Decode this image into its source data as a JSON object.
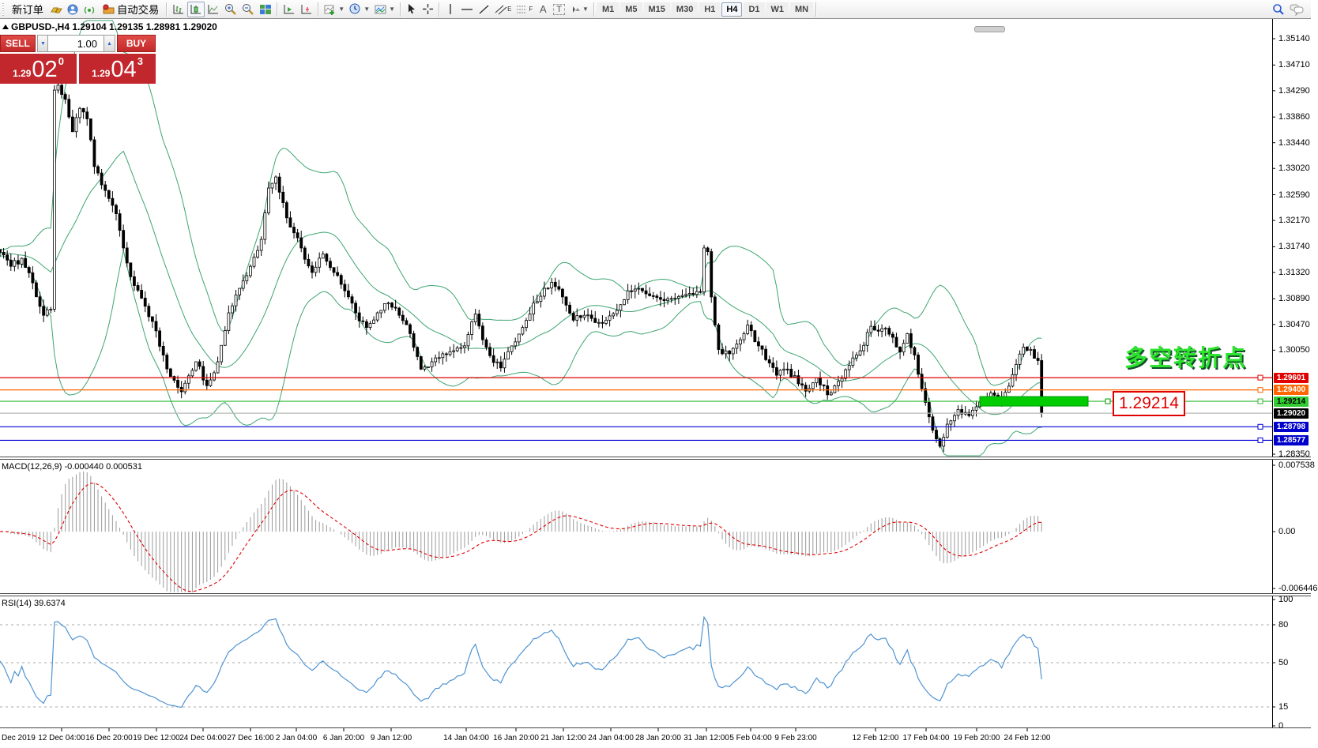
{
  "toolbar": {
    "new_order_label": "新订单",
    "auto_trading_label": "自动交易",
    "timeframes": [
      "M1",
      "M5",
      "M15",
      "M30",
      "H1",
      "H4",
      "D1",
      "W1",
      "MN"
    ],
    "active_timeframe": "H4",
    "text_tool_label": "A",
    "channel_tool_label": "E",
    "fibo_tool_label": "F",
    "label_tool_label": "T"
  },
  "chart": {
    "title": "GBPUSD-,H4 1.29104 1.29135 1.28981 1.29020",
    "symbol": "GBPUSD-",
    "timeframe": "H4"
  },
  "trade_panel": {
    "sell_label": "SELL",
    "buy_label": "BUY",
    "volume": "1.00",
    "sell_price_prefix": "1.29",
    "sell_price_big": "02",
    "sell_price_sup": "0",
    "buy_price_prefix": "1.29",
    "buy_price_big": "04",
    "buy_price_sup": "3"
  },
  "indicator_labels": {
    "macd": "MACD(12,26,9) -0.000440 0.000531",
    "rsi": "RSI(14) 39.6374"
  },
  "annotations": {
    "turning_point": "多空转折点",
    "price_tag": "1.29214"
  },
  "price_axis": {
    "ticks": [
      "1.35140",
      "1.34710",
      "1.34290",
      "1.33860",
      "1.33440",
      "1.33020",
      "1.32590",
      "1.32170",
      "1.31740",
      "1.31320",
      "1.30890",
      "1.30470",
      "1.30050",
      "1.28350"
    ]
  },
  "levels": [
    {
      "price": 1.29601,
      "color": "#e00000",
      "label": "1.29601",
      "badge_bg": "#e00000",
      "badge_fg": "#ffffff"
    },
    {
      "price": 1.294,
      "color": "#ff6600",
      "label": "1.29400",
      "badge_bg": "#ff6600",
      "badge_fg": "#ffffff"
    },
    {
      "price": 1.29214,
      "color": "#2eb82e",
      "label": "1.29214",
      "badge_bg": "#33cc33",
      "badge_fg": "#000000"
    },
    {
      "price": 1.2902,
      "color": "#b8b8b8",
      "label": "1.29020",
      "badge_bg": "#000000",
      "badge_fg": "#ffffff",
      "no_marker": true
    },
    {
      "price": 1.28798,
      "color": "#0000d6",
      "label": "1.28798",
      "badge_bg": "#0000cc",
      "badge_fg": "#ffffff"
    },
    {
      "price": 1.28577,
      "color": "#0000d6",
      "label": "1.28577",
      "badge_bg": "#0000cc",
      "badge_fg": "#ffffff"
    }
  ],
  "macd_axis": [
    {
      "text": "0.007538",
      "v": 0.007538
    },
    {
      "text": "0.00",
      "v": 0
    },
    {
      "text": "-0.006446",
      "v": -0.006446
    }
  ],
  "rsi_axis": [
    {
      "text": "100",
      "v": 100
    },
    {
      "text": "80",
      "v": 80
    },
    {
      "text": "50",
      "v": 50
    },
    {
      "text": "15",
      "v": 15
    },
    {
      "text": "0",
      "v": 0
    }
  ],
  "rsi_levels": [
    80,
    50,
    15
  ],
  "time_axis": [
    {
      "x": 2,
      "label": "Dec 2019",
      "align": "left"
    },
    {
      "x": 78,
      "label": "12 Dec 04:00"
    },
    {
      "x": 138,
      "label": "16 Dec 20:00"
    },
    {
      "x": 198,
      "label": "19 Dec 12:00"
    },
    {
      "x": 257,
      "label": "24 Dec 04:00"
    },
    {
      "x": 317,
      "label": "27 Dec 16:00"
    },
    {
      "x": 375,
      "label": "2 Jan 04:00"
    },
    {
      "x": 435,
      "label": "6 Jan 20:00"
    },
    {
      "x": 495,
      "label": "9 Jan 12:00"
    },
    {
      "x": 590,
      "label": "14 Jan 04:00"
    },
    {
      "x": 653,
      "label": "16 Jan 20:00"
    },
    {
      "x": 713,
      "label": "21 Jan 12:00"
    },
    {
      "x": 773,
      "label": "24 Jan 04:00"
    },
    {
      "x": 833,
      "label": "28 Jan 20:00"
    },
    {
      "x": 894,
      "label": "31 Jan 12:00"
    },
    {
      "x": 950,
      "label": "5 Feb 04:00"
    },
    {
      "x": 1007,
      "label": "9 Feb 23:00"
    },
    {
      "x": 1108,
      "label": "12 Feb 12:00"
    },
    {
      "x": 1172,
      "label": "17 Feb 04:00"
    },
    {
      "x": 1236,
      "label": "19 Feb 20:00"
    },
    {
      "x": 1300,
      "label": "24 Feb 12:00"
    }
  ],
  "chart_data": {
    "type": "candlestick",
    "symbol": "GBPUSD",
    "timeframe": "H4",
    "ohlc_current": {
      "open": 1.29104,
      "high": 1.29135,
      "low": 1.28981,
      "close": 1.2902
    },
    "y_range": [
      1.2835,
      1.3545
    ],
    "indicators": [
      {
        "name": "Bollinger Bands",
        "period": 20,
        "deviation": 2
      },
      {
        "name": "MACD",
        "fast": 12,
        "slow": 26,
        "signal": 9,
        "current_values": "-0.000440 0.000531"
      },
      {
        "name": "RSI",
        "period": 14,
        "current_value": 39.6374
      }
    ],
    "price_keypoints": [
      [
        0,
        1.3165
      ],
      [
        3,
        1.3142
      ],
      [
        6,
        1.3155
      ],
      [
        9,
        1.3115
      ],
      [
        12,
        1.3062
      ],
      [
        14,
        1.3072
      ],
      [
        15,
        1.343
      ],
      [
        16,
        1.3438
      ],
      [
        18,
        1.3415
      ],
      [
        20,
        1.3362
      ],
      [
        22,
        1.34
      ],
      [
        24,
        1.3383
      ],
      [
        26,
        1.3305
      ],
      [
        29,
        1.3266
      ],
      [
        32,
        1.3228
      ],
      [
        34,
        1.3172
      ],
      [
        36,
        1.3125
      ],
      [
        39,
        1.309
      ],
      [
        42,
        1.3052
      ],
      [
        45,
        1.2997
      ],
      [
        47,
        1.2962
      ],
      [
        50,
        1.2937
      ],
      [
        52,
        1.2963
      ],
      [
        54,
        1.2986
      ],
      [
        57,
        1.2947
      ],
      [
        60,
        1.2986
      ],
      [
        63,
        1.3066
      ],
      [
        66,
        1.3106
      ],
      [
        69,
        1.3142
      ],
      [
        72,
        1.3186
      ],
      [
        74,
        1.327
      ],
      [
        76,
        1.3288
      ],
      [
        78,
        1.3246
      ],
      [
        80,
        1.3206
      ],
      [
        83,
        1.3172
      ],
      [
        86,
        1.3132
      ],
      [
        89,
        1.3162
      ],
      [
        92,
        1.3132
      ],
      [
        95,
        1.3102
      ],
      [
        98,
        1.3066
      ],
      [
        101,
        1.3042
      ],
      [
        104,
        1.3066
      ],
      [
        107,
        1.3082
      ],
      [
        110,
        1.3062
      ],
      [
        113,
        1.3032
      ],
      [
        116,
        1.2974
      ],
      [
        119,
        1.2986
      ],
      [
        122,
        1.2999
      ],
      [
        125,
        1.3004
      ],
      [
        128,
        1.3012
      ],
      [
        131,
        1.3064
      ],
      [
        133,
        1.3022
      ],
      [
        135,
        1.2996
      ],
      [
        138,
        1.2976
      ],
      [
        141,
        1.3012
      ],
      [
        144,
        1.3042
      ],
      [
        147,
        1.3082
      ],
      [
        150,
        1.3106
      ],
      [
        152,
        1.3116
      ],
      [
        155,
        1.3092
      ],
      [
        158,
        1.3054
      ],
      [
        161,
        1.3062
      ],
      [
        164,
        1.305
      ],
      [
        167,
        1.3054
      ],
      [
        170,
        1.307
      ],
      [
        173,
        1.3102
      ],
      [
        176,
        1.3106
      ],
      [
        179,
        1.3094
      ],
      [
        182,
        1.3088
      ],
      [
        186,
        1.309
      ],
      [
        191,
        1.3096
      ],
      [
        193,
        1.31
      ],
      [
        194,
        1.3172
      ],
      [
        195,
        1.3166
      ],
      [
        196,
        1.3092
      ],
      [
        198,
        1.3006
      ],
      [
        201,
        1.2999
      ],
      [
        204,
        1.3022
      ],
      [
        206,
        1.3046
      ],
      [
        209,
        1.3012
      ],
      [
        212,
        1.2984
      ],
      [
        214,
        1.2964
      ],
      [
        217,
        1.2974
      ],
      [
        220,
        1.295
      ],
      [
        222,
        1.2938
      ],
      [
        225,
        1.296
      ],
      [
        228,
        1.2932
      ],
      [
        231,
        1.2954
      ],
      [
        234,
        1.298
      ],
      [
        237,
        1.3004
      ],
      [
        240,
        1.3044
      ],
      [
        243,
        1.304
      ],
      [
        246,
        1.3026
      ],
      [
        248,
        1.3002
      ],
      [
        250,
        1.3032
      ],
      [
        252,
        1.2997
      ],
      [
        254,
        1.2942
      ],
      [
        256,
        1.2896
      ],
      [
        258,
        1.286
      ],
      [
        259,
        1.2848
      ],
      [
        261,
        1.2884
      ],
      [
        264,
        1.2908
      ],
      [
        267,
        1.2898
      ],
      [
        270,
        1.292
      ],
      [
        273,
        1.2935
      ],
      [
        276,
        1.2918
      ],
      [
        279,
        1.2965
      ],
      [
        282,
        1.301
      ],
      [
        284,
        1.3006
      ],
      [
        286,
        1.2988
      ],
      [
        287,
        1.2902
      ]
    ],
    "bars": 288,
    "warmup": 30,
    "bar_width": 4.593,
    "seed": 11,
    "noise": 0.0011,
    "wick": 0.0012,
    "main_scale": {
      "v1": 1.3514,
      "y1": 49,
      "v2": 1.2835,
      "y2": 575
    },
    "macd_scale": {
      "v1": 0.007538,
      "y1": 589,
      "v2": -0.006446,
      "y2": 745
    },
    "rsi_scale": {
      "v1": 100,
      "y1": 759,
      "v2": 0,
      "y2": 919
    },
    "plot": {
      "x0": 0,
      "x1": 1610,
      "main_top": 26,
      "main_bottom": 577,
      "macd_top": 584,
      "macd_bottom": 750,
      "rsi_top": 757,
      "rsi_bottom": 920
    },
    "colors": {
      "bands": "#3da56f",
      "bull": "#ffffff",
      "bear": "#000000",
      "outline": "#000000",
      "macd_hist": "#9a9a9a",
      "macd_signal": "#e00000",
      "rsi": "#4f93d2",
      "grid_dash": "#aaaaaa"
    },
    "highlight_segment": {
      "price": 1.29214,
      "x1": 1240,
      "x2": 1377,
      "thickness": 12,
      "color": "#00cc00",
      "edge": "#009900"
    }
  }
}
